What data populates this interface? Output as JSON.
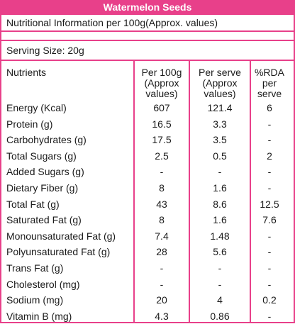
{
  "title": "Watermelon Seeds",
  "info": "Nutritional Information per 100g(Approx. values)",
  "serving": "Serving Size:  20g",
  "headers": {
    "nutrients": "Nutrients",
    "per100": [
      "Per 100g",
      "(Approx",
      "values)"
    ],
    "perServe": [
      "Per serve",
      "(Approx",
      "values)"
    ],
    "rda": [
      "%RDA",
      "per",
      "serve"
    ]
  },
  "rows": [
    {
      "name": "Energy (Kcal)",
      "per100": "607",
      "perServe": "121.4",
      "rda": "6"
    },
    {
      "name": "Protein (g)",
      "per100": "16.5",
      "perServe": "3.3",
      "rda": "-"
    },
    {
      "name": "Carbohydrates (g)",
      "per100": "17.5",
      "perServe": "3.5",
      "rda": "-"
    },
    {
      "name": "Total Sugars (g)",
      "per100": "2.5",
      "perServe": "0.5",
      "rda": "2"
    },
    {
      "name": "Added Sugars (g)",
      "per100": "-",
      "perServe": "-",
      "rda": "-"
    },
    {
      "name": "Dietary Fiber (g)",
      "per100": "8",
      "perServe": "1.6",
      "rda": "-"
    },
    {
      "name": "Total Fat (g)",
      "per100": "43",
      "perServe": "8.6",
      "rda": "12.5"
    },
    {
      "name": "Saturated Fat (g)",
      "per100": "8",
      "perServe": "1.6",
      "rda": "7.6"
    },
    {
      "name": "Monounsaturated Fat (g)",
      "per100": "7.4",
      "perServe": "1.48",
      "rda": "-"
    },
    {
      "name": "Polyunsaturated Fat (g)",
      "per100": "28",
      "perServe": "5.6",
      "rda": "-"
    },
    {
      "name": "Trans Fat (g)",
      "per100": "-",
      "perServe": "-",
      "rda": "-"
    },
    {
      "name": "Cholesterol (mg)",
      "per100": "-",
      "perServe": "-",
      "rda": "-"
    },
    {
      "name": "Sodium (mg)",
      "per100": "20",
      "perServe": "4",
      "rda": "0.2"
    },
    {
      "name": "Vitamin B (mg)",
      "per100": "4.3",
      "perServe": "0.86",
      "rda": "-"
    }
  ]
}
